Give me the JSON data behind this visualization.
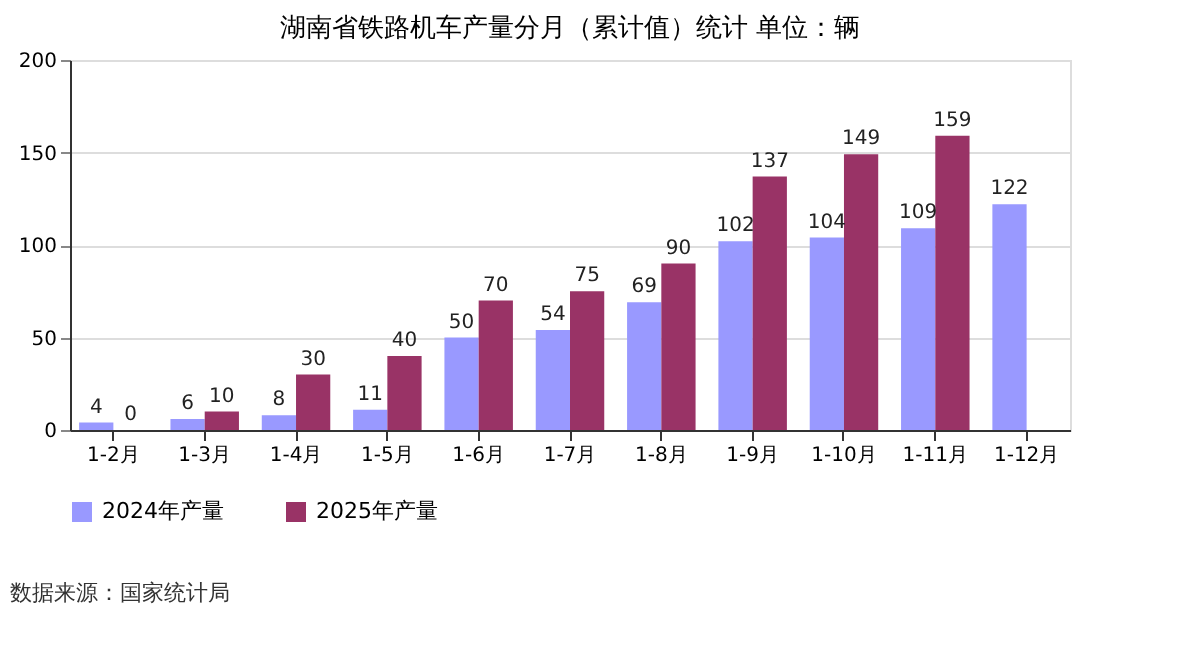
{
  "chart_data": {
    "type": "bar",
    "title": "湖南省铁路机车产量分月（累计值）统计  单位：辆",
    "categories": [
      "1-2月",
      "1-3月",
      "1-4月",
      "1-5月",
      "1-6月",
      "1-7月",
      "1-8月",
      "1-9月",
      "1-10月",
      "1-11月",
      "1-12月"
    ],
    "series": [
      {
        "name": "2024年产量",
        "color": "#9999ff",
        "values": [
          4,
          6,
          8,
          11,
          50,
          54,
          69,
          102,
          104,
          109,
          122
        ]
      },
      {
        "name": "2025年产量",
        "color": "#993366",
        "values": [
          0,
          10,
          30,
          40,
          70,
          75,
          90,
          137,
          149,
          159,
          null
        ]
      }
    ],
    "ylim": [
      0,
      200
    ],
    "yticks": [
      0,
      50,
      100,
      150,
      200
    ],
    "grid": "y",
    "legend": "bottom",
    "data_labels": true,
    "annotations": [
      "数据来源：国家统计局"
    ]
  }
}
